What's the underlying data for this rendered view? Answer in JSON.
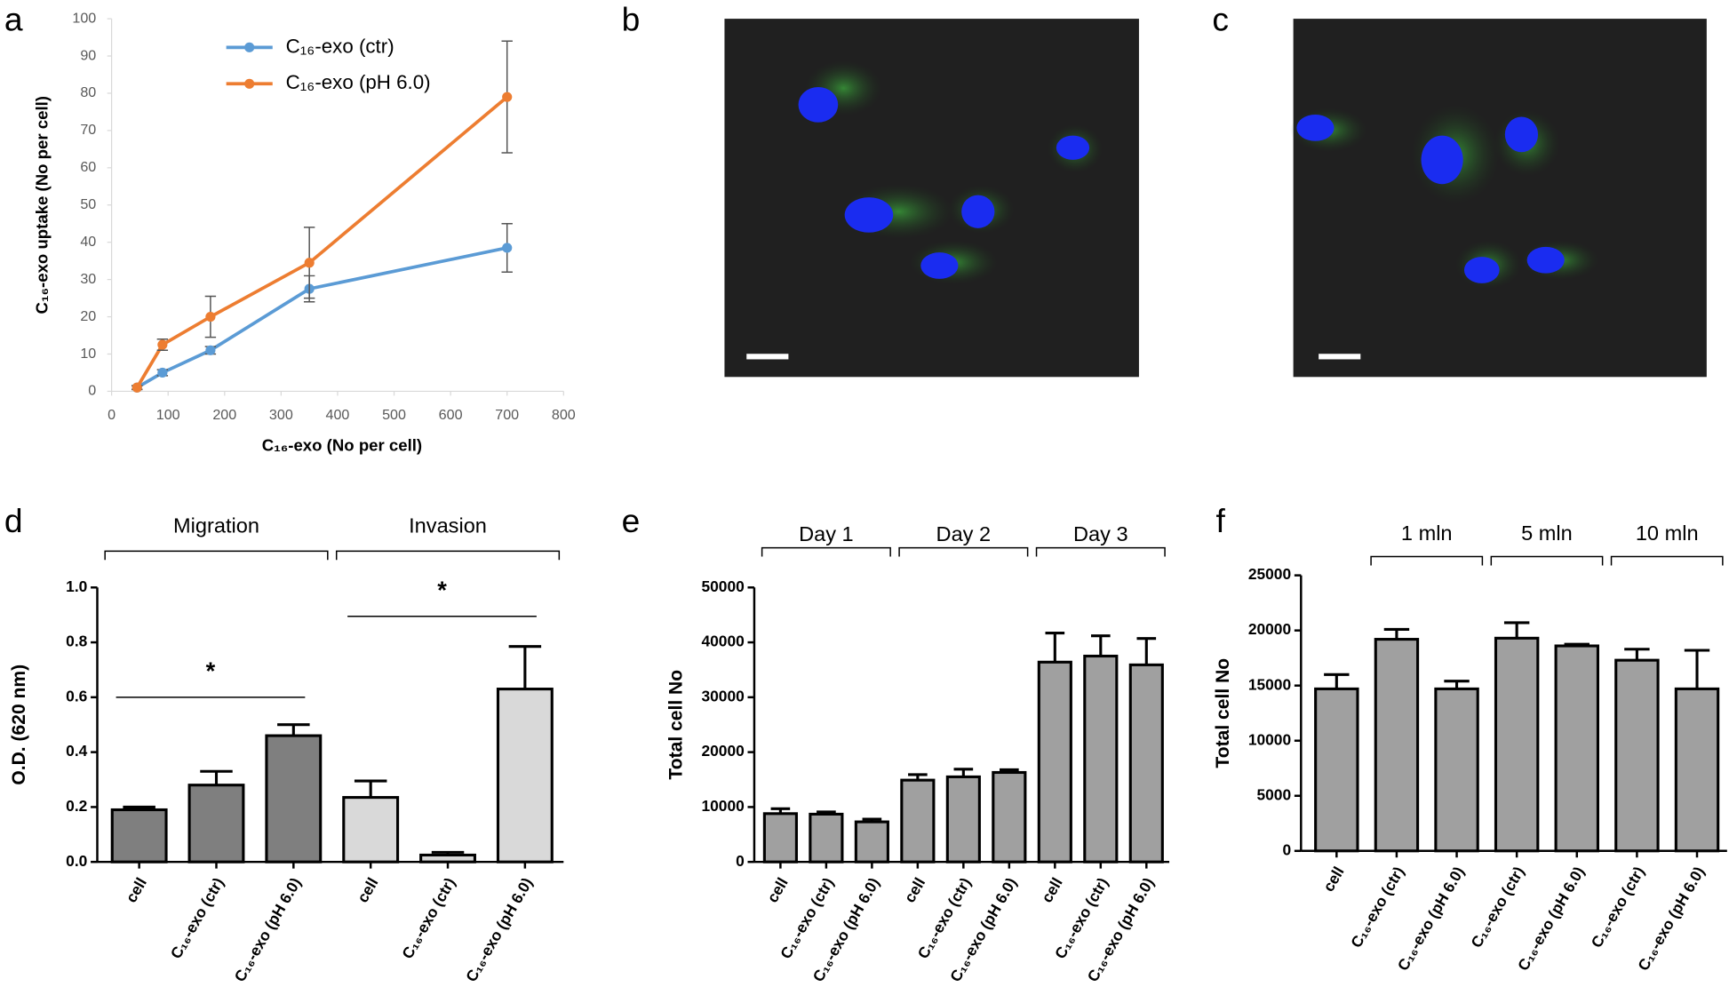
{
  "chart_data": [
    {
      "type": "line",
      "panel": "a",
      "xlabel": "C₁₆-exo (No per cell)",
      "ylabel": "C₁₆-exo uptake (No per cell)",
      "x": [
        45,
        90,
        175,
        350,
        700
      ],
      "series": [
        {
          "name": "C₁₆-exo (ctr)",
          "color": "#5b9bd5",
          "values": [
            1,
            5,
            11,
            27.5,
            38.5
          ],
          "errors": [
            0.5,
            0.8,
            1,
            3.5,
            6.5
          ]
        },
        {
          "name": "C₁₆-exo (pH 6.0)",
          "color": "#ed7d31",
          "values": [
            1,
            12.5,
            20,
            34.5,
            79
          ],
          "errors": [
            0.5,
            1.5,
            5.5,
            9.5,
            15
          ]
        }
      ],
      "xlim": [
        0,
        800
      ],
      "xticks": [
        0,
        100,
        200,
        300,
        400,
        500,
        600,
        700,
        800
      ],
      "ylim": [
        0,
        100
      ],
      "yticks": [
        0,
        10,
        20,
        30,
        40,
        50,
        60,
        70,
        80,
        90,
        100
      ],
      "legend": "top-left"
    },
    {
      "type": "bar",
      "panel": "d",
      "ylabel": "O.D. (620 nm)",
      "categories": [
        "cell",
        "C₁₆-exo (ctr)",
        "C₁₆-exo (pH 6.0)",
        "cell",
        "C₁₆-exo (ctr)",
        "C₁₆-exo (pH 6.0)"
      ],
      "values": [
        0.19,
        0.28,
        0.46,
        0.235,
        0.025,
        0.63
      ],
      "errors": [
        0.01,
        0.05,
        0.04,
        0.06,
        0.01,
        0.155
      ],
      "colors": [
        "#7f7f7f",
        "#7f7f7f",
        "#7f7f7f",
        "#d9d9d9",
        "#d9d9d9",
        "#d9d9d9"
      ],
      "groups": [
        {
          "label": "Migration",
          "significance": "*"
        },
        {
          "label": "Invasion",
          "significance": "*"
        }
      ],
      "ylim": [
        0,
        1
      ],
      "yticks": [
        {
          "value": 0,
          "label": "0.0"
        },
        0.2,
        0.4,
        0.6,
        0.8,
        {
          "value": 1,
          "label": "1.0"
        }
      ]
    },
    {
      "type": "bar",
      "panel": "e",
      "ylabel": "Total cell No",
      "categories": [
        "cell",
        "C₁₆-exo (ctr)",
        "C₁₆-exo (pH 6.0)",
        "cell",
        "C₁₆-exo (ctr)",
        "C₁₆-exo (pH 6.0)",
        "cell",
        "C₁₆-exo (ctr)",
        "C₁₆-exo (pH 6.0)"
      ],
      "values": [
        8800,
        8700,
        7300,
        14900,
        15500,
        16300,
        36400,
        37500,
        35900
      ],
      "errors": [
        900,
        400,
        500,
        1000,
        1400,
        500,
        5300,
        3700,
        4800
      ],
      "color": "#a0a0a0",
      "groups": [
        {
          "label": "Day 1"
        },
        {
          "label": "Day 2"
        },
        {
          "label": "Day 3"
        }
      ],
      "ylim": [
        0,
        50000
      ],
      "yticks": [
        0,
        10000,
        20000,
        30000,
        40000,
        50000
      ]
    },
    {
      "type": "bar",
      "panel": "f",
      "ylabel": "Total cell No",
      "categories": [
        "cell",
        "C₁₆-exo (ctr)",
        "C₁₆-exo (pH 6.0)",
        "C₁₆-exo (ctr)",
        "C₁₆-exo (pH 6.0)",
        "C₁₆-exo (ctr)",
        "C₁₆-exo (pH 6.0)"
      ],
      "values": [
        14700,
        19200,
        14700,
        19300,
        18600,
        17300,
        14700
      ],
      "errors": [
        1300,
        900,
        700,
        1400,
        150,
        1000,
        3500
      ],
      "color": "#a0a0a0",
      "groups": [
        {
          "label": "1 mln"
        },
        {
          "label": "5 mln"
        },
        {
          "label": "10 mln"
        }
      ],
      "ylim": [
        0,
        25000
      ],
      "yticks": [
        0,
        5000,
        10000,
        15000,
        20000,
        25000
      ]
    }
  ],
  "images": [
    {
      "panel": "b"
    },
    {
      "panel": "c"
    }
  ]
}
